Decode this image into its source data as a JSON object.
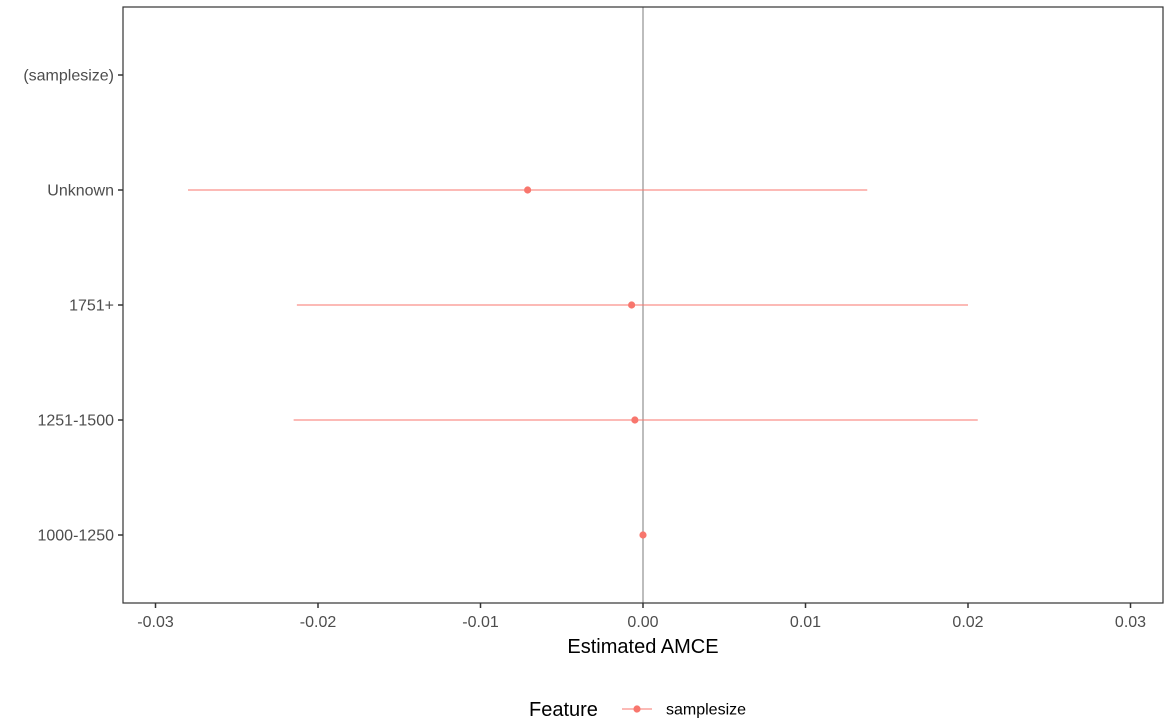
{
  "chart_data": {
    "type": "scatter",
    "subtype": "coefficient-plot-with-error-bars",
    "title": "",
    "xlabel": "Estimated AMCE",
    "ylabel": "",
    "xlim": [
      -0.032,
      0.032
    ],
    "x_ticks": [
      -0.03,
      -0.02,
      -0.01,
      0.0,
      0.01,
      0.02,
      0.03
    ],
    "x_tick_labels": [
      "-0.03",
      "-0.02",
      "-0.01",
      "0.00",
      "0.01",
      "0.02",
      "0.03"
    ],
    "categories": [
      "(samplesize)",
      "Unknown",
      "1751+",
      "1251-1500",
      "1000-1250"
    ],
    "reference_line_x": 0.0,
    "grid": false,
    "legend": {
      "title": "Feature",
      "position": "bottom",
      "entries": [
        "samplesize"
      ]
    },
    "colors": {
      "series": "#F8766D",
      "reference_line": "#bdbdbd",
      "axis": "#333333"
    },
    "series": [
      {
        "name": "samplesize",
        "points": [
          {
            "category": "Unknown",
            "estimate": -0.0071,
            "lower": -0.028,
            "upper": 0.0138
          },
          {
            "category": "1751+",
            "estimate": -0.0007,
            "lower": -0.0213,
            "upper": 0.02
          },
          {
            "category": "1251-1500",
            "estimate": -0.0005,
            "lower": -0.0215,
            "upper": 0.0206
          },
          {
            "category": "1000-1250",
            "estimate": 0.0,
            "lower": null,
            "upper": null
          }
        ]
      }
    ]
  }
}
